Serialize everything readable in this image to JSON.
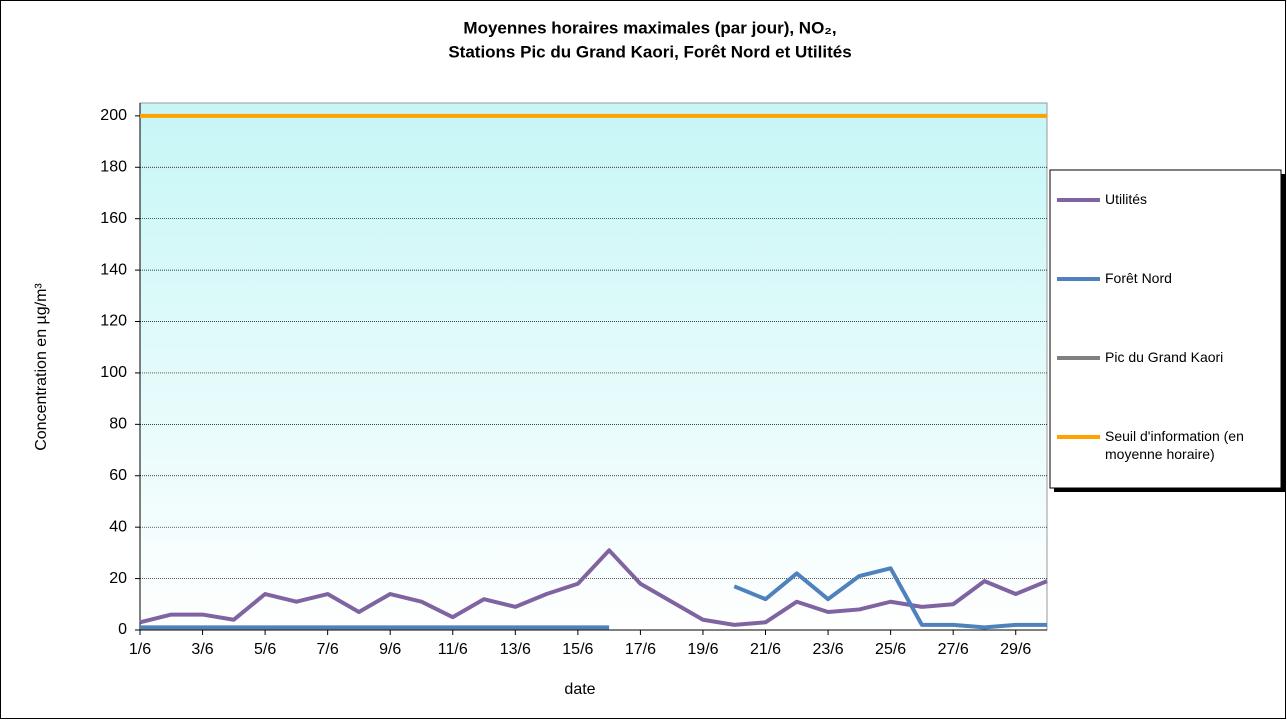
{
  "chart_data": {
    "type": "line",
    "title": "Moyennes horaires maximales (par jour), NO₂,",
    "subtitle": "Stations Pic du Grand Kaori, Forêt Nord et Utilités",
    "x_label": "date",
    "y_label": "Concentration en µg/m³",
    "categories": [
      "1/6",
      null,
      "3/6",
      null,
      "5/6",
      null,
      "7/6",
      null,
      "9/6",
      null,
      "11/6",
      null,
      "13/6",
      null,
      "15/6",
      null,
      "17/6",
      null,
      "19/6",
      null,
      "21/6",
      null,
      "23/6",
      null,
      "25/6",
      null,
      "27/6",
      null,
      "29/6",
      null
    ],
    "series": [
      {
        "name": "Utilités",
        "color": "#8064a2",
        "values": [
          3,
          6,
          6,
          4,
          14,
          11,
          14,
          7,
          14,
          11,
          5,
          12,
          9,
          14,
          18,
          31,
          18,
          11,
          4,
          2,
          3,
          11,
          7,
          8,
          11,
          9,
          10,
          19,
          14,
          19
        ]
      },
      {
        "name": "Forêt Nord",
        "color": "#4f81bd",
        "values": [
          1,
          1,
          1,
          1,
          1,
          1,
          1,
          1,
          1,
          1,
          1,
          1,
          1,
          1,
          1,
          1,
          null,
          null,
          null,
          17,
          12,
          22,
          12,
          21,
          24,
          2,
          2,
          1,
          2,
          2
        ]
      },
      {
        "name": "Pic du Grand Kaori",
        "color": "#808080",
        "values": [
          null,
          null,
          null,
          null,
          null,
          null,
          null,
          null,
          null,
          null,
          null,
          null,
          null,
          null,
          null,
          null,
          null,
          null,
          null,
          null,
          null,
          null,
          null,
          null,
          null,
          null,
          null,
          null,
          null,
          null
        ]
      },
      {
        "name": "Seuil d'information (en moyenne horaire)",
        "color": "#ffa200",
        "values": [
          200,
          200,
          200,
          200,
          200,
          200,
          200,
          200,
          200,
          200,
          200,
          200,
          200,
          200,
          200,
          200,
          200,
          200,
          200,
          200,
          200,
          200,
          200,
          200,
          200,
          200,
          200,
          200,
          200,
          200
        ]
      }
    ],
    "ylim": [
      0,
      205
    ],
    "yticks": [
      0,
      20,
      40,
      60,
      80,
      100,
      120,
      140,
      160,
      180,
      200
    ],
    "grid": true,
    "legend": "right"
  }
}
